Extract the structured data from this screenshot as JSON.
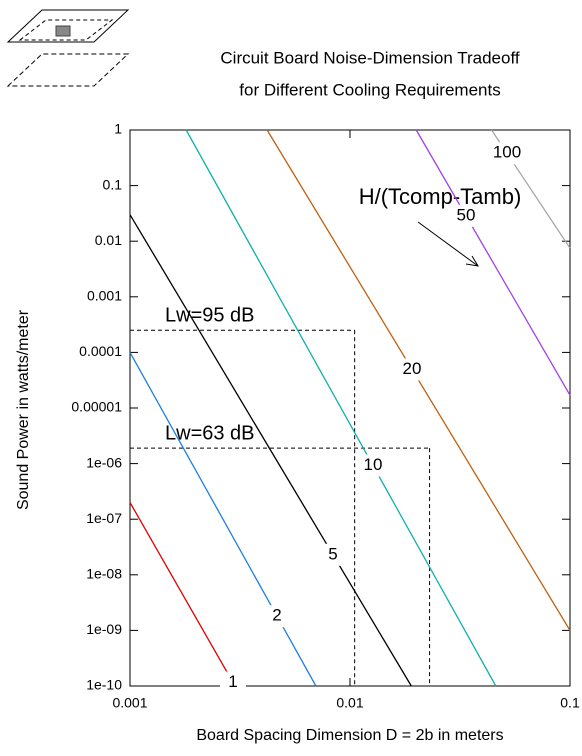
{
  "chart_data": {
    "type": "line",
    "title": [
      "Circuit Board Noise-Dimension Tradeoff",
      "for Different Cooling Requirements"
    ],
    "x_label": "Board Spacing Dimension D = 2b in meters",
    "y_label": "Sound Power in watts/meter",
    "annotation": "H/(Tcomp-Tamb)",
    "log_x": true,
    "log_y": true,
    "xlim": [
      0.001,
      0.1
    ],
    "xticks": [
      0.001,
      0.01,
      0.1
    ],
    "ylim": [
      1e-10,
      1
    ],
    "yticks": [
      1,
      0.1,
      0.01,
      0.001,
      0.0001,
      1e-05,
      {
        "value": 1e-06,
        "label": "1e-06"
      },
      {
        "value": 1e-07,
        "label": "1e-07"
      },
      {
        "value": 1e-08,
        "label": "1e-08"
      },
      {
        "value": 1e-09,
        "label": "1e-09"
      },
      {
        "value": 1e-10,
        "label": "1e-10"
      }
    ],
    "series": [
      {
        "name": "1",
        "color": "#e00000",
        "x": [
          0.001,
          0.003
        ],
        "values": [
          2e-07,
          1e-10
        ]
      },
      {
        "name": "2",
        "color": "#1e7fe0",
        "x": [
          0.001,
          0.007
        ],
        "values": [
          0.0001,
          1e-10
        ]
      },
      {
        "name": "5",
        "color": "#000000",
        "x": [
          0.001,
          0.019
        ],
        "values": [
          0.03,
          1e-10
        ]
      },
      {
        "name": "10",
        "color": "#10b0a8",
        "x": [
          0.0018,
          0.046
        ],
        "values": [
          1,
          1e-10
        ]
      },
      {
        "name": "20",
        "color": "#c06010",
        "x": [
          0.0042,
          0.1
        ],
        "values": [
          1,
          1e-09
        ]
      },
      {
        "name": "50",
        "color": "#a040e8",
        "x": [
          0.02,
          0.1
        ],
        "values": [
          1,
          1.7e-05
        ]
      },
      {
        "name": "100",
        "color": "#a8a8a8",
        "x": [
          0.044,
          0.1
        ],
        "values": [
          1,
          0.0075
        ]
      }
    ],
    "reference_lines": [
      {
        "label": "Lw=95 dB",
        "x": 0.0105,
        "y": 0.00025
      },
      {
        "label": "Lw=63 dB",
        "x": 0.023,
        "y": 1.9e-06
      }
    ]
  }
}
